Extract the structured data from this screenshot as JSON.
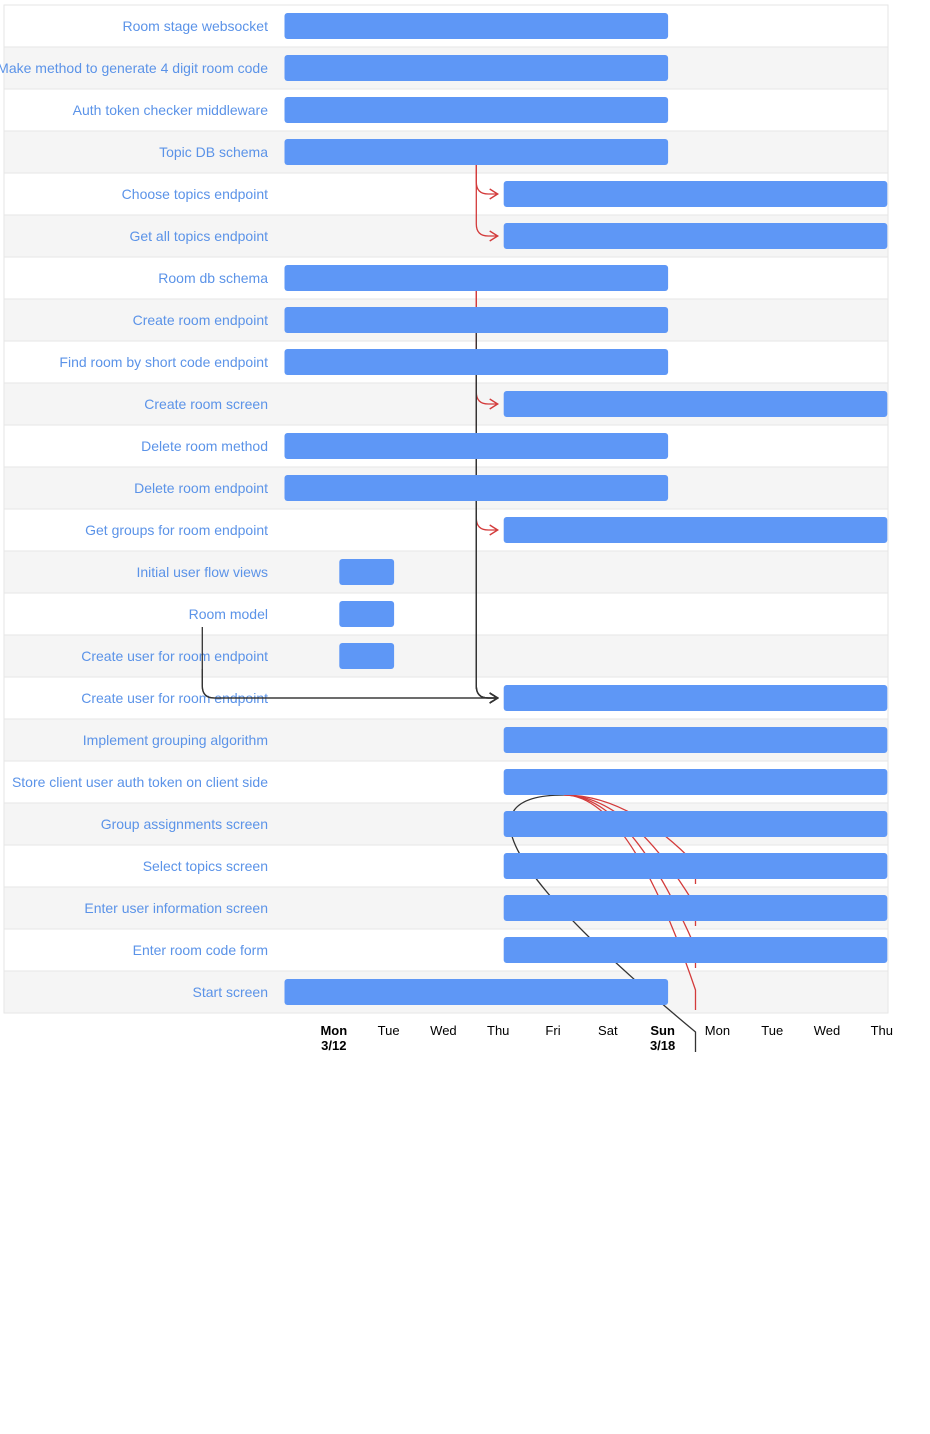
{
  "chart_data": {
    "type": "gantt",
    "colors": {
      "bar": "#5e97f6",
      "label": "#5b93e8",
      "row_alt": "#f5f5f5",
      "row_border": "#e6e6e6",
      "dependency": "#333333",
      "critical_path": "#d33b3b"
    },
    "tasks": [
      {
        "name": "Room stage websocket",
        "start": 0,
        "end": 7
      },
      {
        "name": "Make method to generate 4 digit room code",
        "start": 0,
        "end": 7
      },
      {
        "name": "Auth token checker middleware",
        "start": 0,
        "end": 7
      },
      {
        "name": "Topic DB schema",
        "start": 0,
        "end": 7
      },
      {
        "name": "Choose topics endpoint",
        "start": 4,
        "end": 11
      },
      {
        "name": "Get all topics endpoint",
        "start": 4,
        "end": 11
      },
      {
        "name": "Room db schema",
        "start": 0,
        "end": 7
      },
      {
        "name": "Create room endpoint",
        "start": 0,
        "end": 7
      },
      {
        "name": "Find room by short code endpoint",
        "start": 0,
        "end": 7
      },
      {
        "name": "Create room screen",
        "start": 4,
        "end": 11
      },
      {
        "name": "Delete room method",
        "start": 0,
        "end": 7
      },
      {
        "name": "Delete room endpoint",
        "start": 0,
        "end": 7
      },
      {
        "name": "Get groups for room endpoint",
        "start": 4,
        "end": 11
      },
      {
        "name": "Initial user flow views",
        "start": 1,
        "end": 2
      },
      {
        "name": "Room model",
        "start": 1,
        "end": 2
      },
      {
        "name": "Create user for room endpoint",
        "start": 1,
        "end": 2
      },
      {
        "name": "Create user for room endpoint",
        "start": 4,
        "end": 11
      },
      {
        "name": "Implement grouping algorithm",
        "start": 4,
        "end": 11
      },
      {
        "name": "Store client user auth token on client side",
        "start": 4,
        "end": 11
      },
      {
        "name": "Group assignments screen",
        "start": 4,
        "end": 11
      },
      {
        "name": "Select topics screen",
        "start": 4,
        "end": 11
      },
      {
        "name": "Enter user information screen",
        "start": 4,
        "end": 11
      },
      {
        "name": "Enter room code form",
        "start": 4,
        "end": 11
      },
      {
        "name": "Start screen",
        "start": 0,
        "end": 7
      }
    ],
    "dependencies": [
      {
        "from": 3,
        "to": 4,
        "critical": true
      },
      {
        "from": 3,
        "to": 5,
        "critical": true
      },
      {
        "from": 6,
        "to": 9,
        "critical": true
      },
      {
        "from": 6,
        "to": 12,
        "critical": true
      },
      {
        "from": 14,
        "to": 16,
        "critical": false
      },
      {
        "from": 15,
        "to": 16,
        "critical": false
      },
      {
        "from": 7,
        "to": 16,
        "critical": false
      },
      {
        "from": 8,
        "to": 16,
        "critical": false
      },
      {
        "from": 10,
        "to": 16,
        "critical": false
      },
      {
        "from": 11,
        "to": 16,
        "critical": false
      },
      {
        "from": 18,
        "to": 19,
        "critical": true
      },
      {
        "from": 18,
        "to": 20,
        "critical": true
      },
      {
        "from": 18,
        "to": 21,
        "critical": true
      },
      {
        "from": 18,
        "to": 22,
        "critical": true
      },
      {
        "from": 18,
        "to": 23,
        "critical": false
      }
    ],
    "x_ticks": [
      {
        "day": 1,
        "label": "Mon",
        "sub": "3/12",
        "bold": true
      },
      {
        "day": 2,
        "label": "Tue"
      },
      {
        "day": 3,
        "label": "Wed"
      },
      {
        "day": 4,
        "label": "Thu"
      },
      {
        "day": 5,
        "label": "Fri"
      },
      {
        "day": 6,
        "label": "Sat"
      },
      {
        "day": 7,
        "label": "Sun",
        "sub": "3/18",
        "bold": true
      },
      {
        "day": 8,
        "label": "Mon"
      },
      {
        "day": 9,
        "label": "Tue"
      },
      {
        "day": 10,
        "label": "Wed"
      },
      {
        "day": 11,
        "label": "Thu"
      }
    ]
  }
}
